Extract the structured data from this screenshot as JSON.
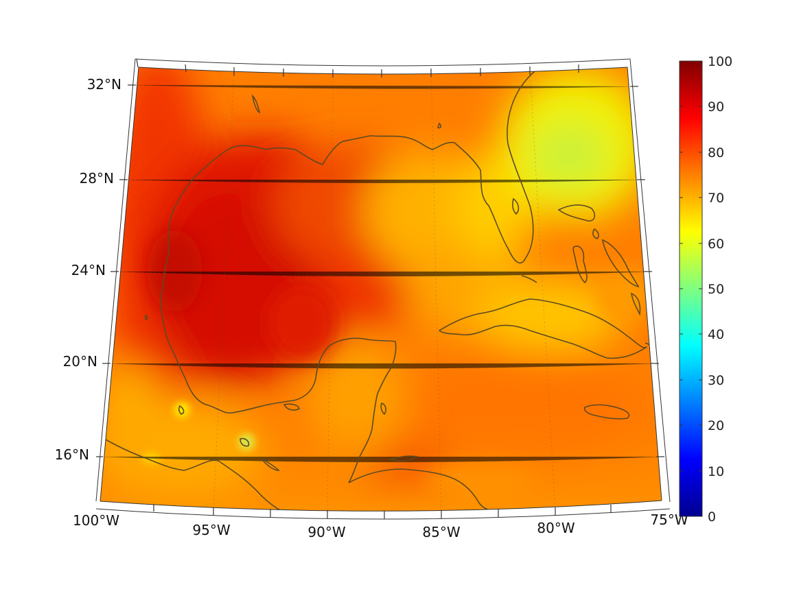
{
  "map": {
    "projection": "lambert-conformal-conic",
    "lon_range": [
      -100,
      -75
    ],
    "lat_range": [
      14,
      33
    ],
    "lon_ticks": [
      {
        "value": -100,
        "label": "100°W"
      },
      {
        "value": -95,
        "label": "95°W"
      },
      {
        "value": -90,
        "label": "90°W"
      },
      {
        "value": -85,
        "label": "85°W"
      },
      {
        "value": -80,
        "label": "80°W"
      },
      {
        "value": -75,
        "label": "75°W"
      }
    ],
    "lat_ticks": [
      {
        "value": 16,
        "label": "16°N"
      },
      {
        "value": 20,
        "label": "20°N"
      },
      {
        "value": 24,
        "label": "24°N"
      },
      {
        "value": 28,
        "label": "28°N"
      },
      {
        "value": 32,
        "label": "32°N"
      }
    ],
    "coastline_color": "#5c4a23",
    "grid": true
  },
  "colorbar": {
    "colormap": "jet",
    "min": 0,
    "max": 100,
    "ticks": [
      "100",
      "90",
      "80",
      "70",
      "60",
      "50",
      "40",
      "30",
      "20",
      "10",
      "0"
    ]
  }
}
